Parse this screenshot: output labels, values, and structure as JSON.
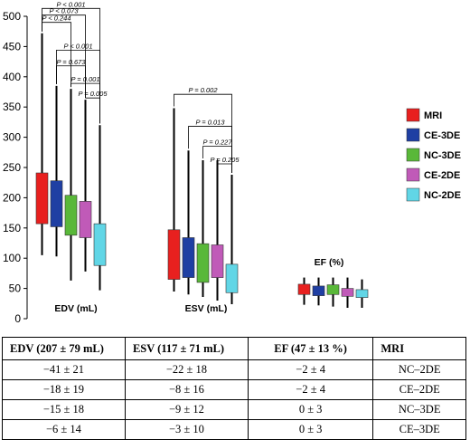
{
  "chart_data": {
    "type": "boxplot",
    "ylim": [
      0,
      500
    ],
    "yticks": [
      0,
      50,
      100,
      150,
      200,
      250,
      300,
      350,
      400,
      450,
      500
    ],
    "groups": [
      {
        "label": "EDV (mL)"
      },
      {
        "label": "ESV (mL)"
      },
      {
        "label": "EF (%)"
      }
    ],
    "series": [
      {
        "name": "MRI",
        "color": "#e8201f",
        "boxes": [
          {
            "min": 105,
            "q1": 157,
            "q3": 241,
            "max": 472
          },
          {
            "min": 45,
            "q1": 65,
            "q3": 147,
            "max": 348
          },
          {
            "min": 23,
            "q1": 40,
            "q3": 57,
            "max": 68
          }
        ]
      },
      {
        "name": "CE-3DE",
        "color": "#1f3fa3",
        "boxes": [
          {
            "min": 103,
            "q1": 152,
            "q3": 228,
            "max": 385
          },
          {
            "min": 40,
            "q1": 68,
            "q3": 134,
            "max": 278
          },
          {
            "min": 22,
            "q1": 38,
            "q3": 54,
            "max": 68
          }
        ]
      },
      {
        "name": "NC-3DE",
        "color": "#59b839",
        "boxes": [
          {
            "min": 63,
            "q1": 138,
            "q3": 204,
            "max": 380
          },
          {
            "min": 36,
            "q1": 60,
            "q3": 124,
            "max": 262
          },
          {
            "min": 20,
            "q1": 40,
            "q3": 56,
            "max": 68
          }
        ]
      },
      {
        "name": "CE-2DE",
        "color": "#c05ab8",
        "boxes": [
          {
            "min": 78,
            "q1": 134,
            "q3": 194,
            "max": 362
          },
          {
            "min": 30,
            "q1": 68,
            "q3": 122,
            "max": 262
          },
          {
            "min": 18,
            "q1": 37,
            "q3": 50,
            "max": 68
          }
        ]
      },
      {
        "name": "NC-2DE",
        "color": "#61d6e6",
        "boxes": [
          {
            "min": 47,
            "q1": 88,
            "q3": 157,
            "max": 320
          },
          {
            "min": 24,
            "q1": 43,
            "q3": 90,
            "max": 238
          },
          {
            "min": 18,
            "q1": 35,
            "q3": 48,
            "max": 65
          }
        ]
      }
    ],
    "pvalues": {
      "EDV": [
        "P < 0.001",
        "P < 0.073",
        "P < 0.244",
        "P < 0.001",
        "P = 0.673",
        "P = 0.001",
        "P = 0.005"
      ],
      "ESV": [
        "P = 0.002",
        "P = 0.013",
        "P = 0.227",
        "P = 0.205"
      ]
    },
    "brackets": {
      "EDV": [
        {
          "from": 0,
          "to": 4,
          "top": 513,
          "p": 0
        },
        {
          "from": 0,
          "to": 3,
          "top": 502,
          "p": 1
        },
        {
          "from": 0,
          "to": 2,
          "top": 490,
          "p": 2
        },
        {
          "from": 1,
          "to": 4,
          "top": 444,
          "p": 3
        },
        {
          "from": 1,
          "to": 3,
          "top": 418,
          "p": 4
        },
        {
          "from": 2,
          "to": 4,
          "top": 389,
          "p": 5
        },
        {
          "from": 3,
          "to": 4,
          "top": 365,
          "p": 6
        }
      ],
      "ESV": [
        {
          "from": 0,
          "to": 4,
          "top": 371,
          "p": 0
        },
        {
          "from": 1,
          "to": 4,
          "top": 318,
          "p": 1
        },
        {
          "from": 2,
          "to": 4,
          "top": 285,
          "p": 2
        },
        {
          "from": 3,
          "to": 4,
          "top": 256,
          "p": 3
        }
      ]
    }
  },
  "table": {
    "headers": [
      "EDV (207 ± 79 mL)",
      "ESV (117 ± 71 mL)",
      "EF (47 ± 13 %)",
      "MRI"
    ],
    "rows": [
      [
        "−41 ± 21",
        "−22 ± 18",
        "−2 ± 4",
        "NC–2DE"
      ],
      [
        "−18 ± 19",
        "−8 ± 16",
        "−2 ± 4",
        "CE–2DE"
      ],
      [
        "−15 ± 18",
        "−9 ± 12",
        "0 ± 3",
        "NC–3DE"
      ],
      [
        "−6 ± 14",
        "−3 ± 10",
        "0 ± 3",
        "CE–3DE"
      ]
    ]
  }
}
